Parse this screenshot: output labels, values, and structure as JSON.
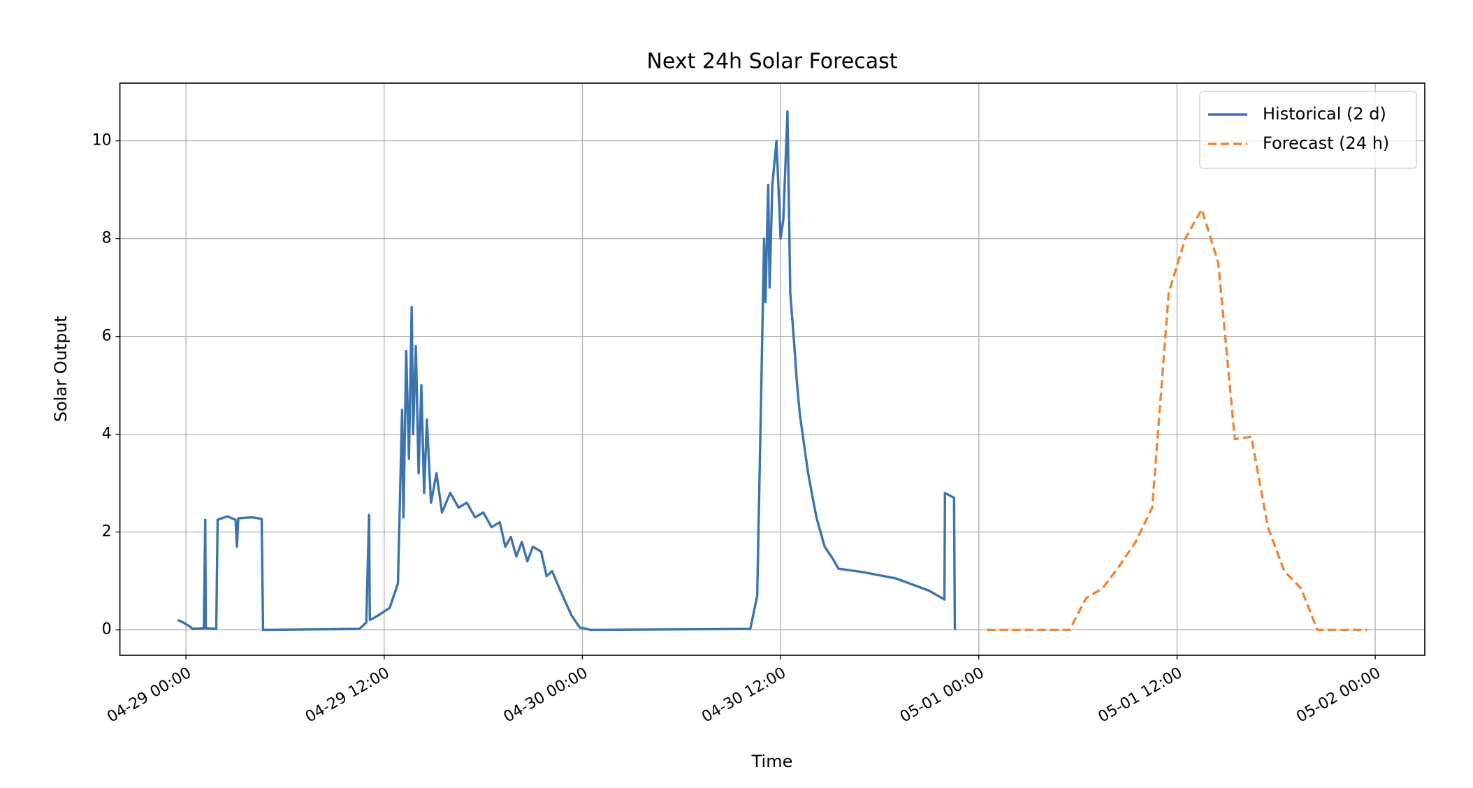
{
  "chart_data": {
    "type": "line",
    "title": "Next 24h Solar Forecast",
    "xlabel": "Time",
    "ylabel": "Solar Output",
    "xlim": [
      "04-28 20:00",
      "05-02 03:00"
    ],
    "xticks": [
      "04-29 00:00",
      "04-29 12:00",
      "04-30 00:00",
      "04-30 12:00",
      "05-01 00:00",
      "05-01 12:00",
      "05-02 00:00"
    ],
    "ylim": [
      -0.52,
      11.18
    ],
    "yticks": [
      0,
      2,
      4,
      6,
      8,
      10
    ],
    "grid": true,
    "legend": "upper right",
    "series": [
      {
        "name": "Historical (2 d)",
        "color": "#3b73ae",
        "linestyle": "solid",
        "x": [
          "04-28 23:30",
          "04-28 23:50",
          "04-29 00:10",
          "04-29 00:25",
          "04-29 01:05",
          "04-29 01:10",
          "04-29 01:12",
          "04-29 01:50",
          "04-29 01:55",
          "04-29 02:30",
          "04-29 03:00",
          "04-29 03:05",
          "04-29 03:10",
          "04-29 04:00",
          "04-29 04:35",
          "04-29 04:40",
          "04-29 10:30",
          "04-29 10:55",
          "04-29 11:05",
          "04-29 11:08",
          "04-29 11:40",
          "04-29 12:20",
          "04-29 12:50",
          "04-29 13:05",
          "04-29 13:10",
          "04-29 13:20",
          "04-29 13:30",
          "04-29 13:40",
          "04-29 13:45",
          "04-29 13:55",
          "04-29 14:05",
          "04-29 14:15",
          "04-29 14:25",
          "04-29 14:35",
          "04-29 14:50",
          "04-29 15:10",
          "04-29 15:30",
          "04-29 16:00",
          "04-29 16:30",
          "04-29 17:00",
          "04-29 17:30",
          "04-29 18:00",
          "04-29 18:30",
          "04-29 19:00",
          "04-29 19:20",
          "04-29 19:40",
          "04-29 20:00",
          "04-29 20:20",
          "04-29 20:40",
          "04-29 21:00",
          "04-29 21:30",
          "04-29 21:50",
          "04-29 22:10",
          "04-29 22:40",
          "04-29 23:20",
          "04-29 23:50",
          "04-30 00:30",
          "04-30 10:10",
          "04-30 10:35",
          "04-30 10:50",
          "04-30 11:00",
          "04-30 11:05",
          "04-30 11:15",
          "04-30 11:20",
          "04-30 11:30",
          "04-30 11:45",
          "04-30 12:00",
          "04-30 12:10",
          "04-30 12:25",
          "04-30 12:35",
          "04-30 12:50",
          "04-30 13:00",
          "04-30 13:10",
          "04-30 13:40",
          "04-30 14:10",
          "04-30 14:40",
          "04-30 15:10",
          "04-30 15:30",
          "04-30 17:00",
          "04-30 19:00",
          "04-30 21:00",
          "04-30 21:55",
          "04-30 21:57",
          "04-30 22:30",
          "04-30 22:33"
        ],
        "values": [
          0.2,
          0.15,
          0.08,
          0.02,
          0.03,
          2.25,
          0.03,
          0.02,
          2.25,
          2.32,
          2.25,
          1.7,
          2.28,
          2.3,
          2.27,
          0,
          0.02,
          0.15,
          2.35,
          0.2,
          0.3,
          0.45,
          0.95,
          4.5,
          2.3,
          5.7,
          3.5,
          6.6,
          4.0,
          5.8,
          3.2,
          5.0,
          2.8,
          4.3,
          2.6,
          3.2,
          2.4,
          2.8,
          2.5,
          2.6,
          2.3,
          2.4,
          2.1,
          2.2,
          1.7,
          1.9,
          1.5,
          1.8,
          1.4,
          1.7,
          1.6,
          1.1,
          1.2,
          0.8,
          0.3,
          0.05,
          0,
          0.02,
          0.7,
          5.0,
          8.0,
          6.7,
          9.1,
          7.0,
          9.1,
          10.0,
          8.0,
          8.4,
          10.6,
          6.9,
          5.8,
          5.0,
          4.4,
          3.2,
          2.3,
          1.7,
          1.45,
          1.25,
          1.18,
          1.05,
          0.8,
          0.62,
          2.8,
          2.7,
          0
        ]
      },
      {
        "name": "Forecast (24 h)",
        "color": "#ef8636",
        "linestyle": "dashed",
        "x": [
          "05-01 00:30",
          "05-01 01:30",
          "05-01 02:30",
          "05-01 03:30",
          "05-01 04:30",
          "05-01 05:30",
          "05-01 06:30",
          "05-01 07:30",
          "05-01 08:30",
          "05-01 09:30",
          "05-01 10:30",
          "05-01 11:30",
          "05-01 12:30",
          "05-01 13:30",
          "05-01 14:30",
          "05-01 15:30",
          "05-01 16:30",
          "05-01 17:30",
          "05-01 18:30",
          "05-01 19:30",
          "05-01 20:30",
          "05-01 21:30",
          "05-01 22:30",
          "05-01 23:30"
        ],
        "values": [
          0,
          0,
          0,
          0,
          0,
          0,
          0.65,
          0.85,
          1.3,
          1.8,
          2.5,
          6.9,
          8.0,
          8.6,
          7.5,
          3.9,
          3.95,
          2.1,
          1.2,
          0.85,
          0,
          0,
          0,
          0
        ]
      }
    ]
  }
}
